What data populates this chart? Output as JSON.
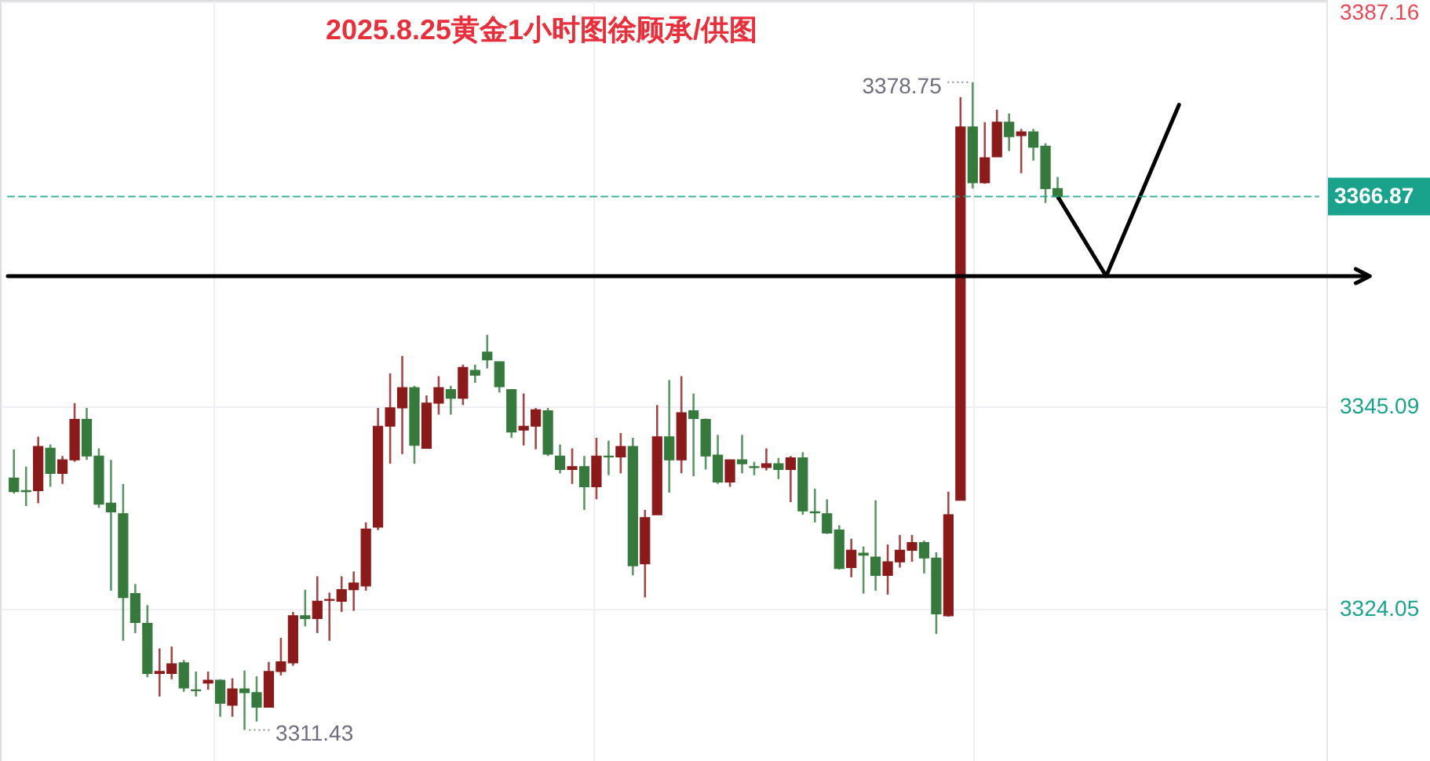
{
  "chart_data": {
    "type": "candlestick",
    "title": "2025.8.25黄金1小时图徐顾承/供图",
    "categories": [
      null,
      null,
      null,
      null,
      null,
      null,
      null,
      null,
      null,
      null,
      null,
      null,
      null,
      null,
      null,
      null,
      null,
      null,
      null,
      null,
      null,
      null,
      null,
      null,
      null,
      null,
      null,
      null,
      null,
      null,
      null,
      null,
      null,
      null,
      null,
      null,
      null,
      null,
      null,
      null,
      null,
      null,
      null,
      null,
      null,
      null,
      null,
      null,
      null,
      null,
      null,
      null,
      null,
      null,
      null,
      null,
      null,
      null,
      null,
      null,
      null,
      null,
      null,
      null,
      null,
      null,
      null,
      null,
      null,
      null,
      null,
      null,
      null,
      null,
      null,
      null,
      null,
      null,
      null,
      null,
      null,
      null,
      null,
      null,
      null,
      null,
      null,
      null,
      null,
      null,
      null,
      null,
      null,
      null,
      null,
      null,
      null,
      null,
      null,
      null,
      null,
      null,
      null,
      null,
      null,
      null,
      null,
      null
    ],
    "ohlc": [
      [
        3337.6,
        3340.6,
        3336.0,
        3336.2
      ],
      [
        3336.3,
        3338.8,
        3334.7,
        3336.2
      ],
      [
        3336.3,
        3341.9,
        3335.0,
        3340.9
      ],
      [
        3340.7,
        3341.1,
        3336.7,
        3338.1
      ],
      [
        3338.1,
        3339.9,
        3337.0,
        3339.5
      ],
      [
        3339.5,
        3345.4,
        3339.3,
        3343.7
      ],
      [
        3343.7,
        3344.9,
        3339.5,
        3339.9
      ],
      [
        3339.9,
        3340.7,
        3334.5,
        3334.9
      ],
      [
        3335.0,
        3339.5,
        3325.9,
        3334.1
      ],
      [
        3333.9,
        3337.0,
        3320.7,
        3325.2
      ],
      [
        3325.6,
        3326.6,
        3321.5,
        3322.6
      ],
      [
        3322.5,
        3324.4,
        3316.9,
        3317.3
      ],
      [
        3317.3,
        3319.9,
        3314.9,
        3317.5
      ],
      [
        3317.3,
        3320.1,
        3316.7,
        3318.3
      ],
      [
        3318.4,
        3318.7,
        3315.4,
        3315.8
      ],
      [
        3315.6,
        3317.5,
        3314.9,
        3315.5
      ],
      [
        3316.3,
        3317.5,
        3315.6,
        3316.6
      ],
      [
        3316.6,
        3316.7,
        3312.8,
        3314.2
      ],
      [
        3314.0,
        3316.8,
        3312.8,
        3315.7
      ],
      [
        3315.7,
        3317.6,
        3311.43,
        3315.3
      ],
      [
        3315.3,
        3317.0,
        3312.3,
        3313.8
      ],
      [
        3313.8,
        3318.5,
        3313.8,
        3317.5
      ],
      [
        3317.5,
        3321.0,
        3317.1,
        3318.5
      ],
      [
        3318.4,
        3323.7,
        3318.1,
        3323.3
      ],
      [
        3323.3,
        3326.0,
        3322.2,
        3323.0
      ],
      [
        3323.0,
        3327.4,
        3321.5,
        3324.8
      ],
      [
        3324.9,
        3325.7,
        3320.7,
        3325.0
      ],
      [
        3324.8,
        3327.4,
        3323.7,
        3326.0
      ],
      [
        3326.0,
        3327.9,
        3323.8,
        3326.7
      ],
      [
        3326.4,
        3333.0,
        3325.9,
        3332.3
      ],
      [
        3332.5,
        3344.9,
        3332.2,
        3343.0
      ],
      [
        3343.0,
        3348.5,
        3339.1,
        3344.9
      ],
      [
        3344.9,
        3350.3,
        3340.1,
        3347.0
      ],
      [
        3347.0,
        3347.2,
        3339.1,
        3341.0
      ],
      [
        3340.7,
        3346.2,
        3340.7,
        3345.4
      ],
      [
        3345.4,
        3348.2,
        3344.2,
        3347.0
      ],
      [
        3346.8,
        3347.2,
        3344.2,
        3345.9
      ],
      [
        3345.9,
        3349.4,
        3345.2,
        3349.1
      ],
      [
        3348.8,
        3349.4,
        3347.5,
        3348.3
      ],
      [
        3350.7,
        3352.5,
        3349.0,
        3349.9
      ],
      [
        3349.7,
        3349.7,
        3346.5,
        3347.1
      ],
      [
        3346.8,
        3346.8,
        3341.8,
        3342.4
      ],
      [
        3342.6,
        3346.4,
        3341.0,
        3343.0
      ],
      [
        3343.0,
        3344.9,
        3340.6,
        3344.7
      ],
      [
        3344.6,
        3344.9,
        3339.9,
        3340.1
      ],
      [
        3339.9,
        3341.1,
        3338.1,
        3338.5
      ],
      [
        3338.5,
        3340.7,
        3337.0,
        3338.8
      ],
      [
        3338.8,
        3339.9,
        3334.3,
        3336.7
      ],
      [
        3336.7,
        3341.8,
        3335.4,
        3339.9
      ],
      [
        3339.9,
        3341.5,
        3337.9,
        3339.8
      ],
      [
        3339.8,
        3342.3,
        3338.1,
        3340.9
      ],
      [
        3340.9,
        3341.8,
        3327.5,
        3328.5
      ],
      [
        3328.7,
        3334.3,
        3325.2,
        3333.5
      ],
      [
        3333.8,
        3345.2,
        3333.8,
        3341.9
      ],
      [
        3341.9,
        3347.8,
        3336.1,
        3339.5
      ],
      [
        3339.5,
        3348.2,
        3338.1,
        3344.4
      ],
      [
        3344.6,
        3346.4,
        3337.8,
        3343.8
      ],
      [
        3343.7,
        3343.8,
        3338.5,
        3339.9
      ],
      [
        3340.0,
        3342.1,
        3337.0,
        3337.2
      ],
      [
        3337.2,
        3339.5,
        3336.7,
        3339.5
      ],
      [
        3339.5,
        3342.1,
        3338.1,
        3339.1
      ],
      [
        3338.8,
        3339.3,
        3337.9,
        3338.7
      ],
      [
        3338.7,
        3340.7,
        3338.4,
        3339.1
      ],
      [
        3339.1,
        3339.7,
        3337.5,
        3338.5
      ],
      [
        3338.5,
        3339.9,
        3335.1,
        3339.7
      ],
      [
        3339.7,
        3340.3,
        3333.8,
        3334.2
      ],
      [
        3334.1,
        3336.5,
        3333.0,
        3334.0
      ],
      [
        3333.9,
        3335.4,
        3331.8,
        3331.9
      ],
      [
        3332.2,
        3332.7,
        3328.1,
        3328.2
      ],
      [
        3328.3,
        3331.3,
        3327.3,
        3330.1
      ],
      [
        3329.8,
        3330.5,
        3325.6,
        3329.6
      ],
      [
        3329.4,
        3335.3,
        3325.9,
        3327.5
      ],
      [
        3327.5,
        3330.7,
        3325.5,
        3328.9
      ],
      [
        3328.9,
        3331.7,
        3328.3,
        3330.1
      ],
      [
        3330.1,
        3331.7,
        3328.9,
        3330.9
      ],
      [
        3330.9,
        3331.1,
        3327.7,
        3329.3
      ],
      [
        3329.3,
        3329.9,
        3321.4,
        3323.5
      ],
      [
        3323.3,
        3336.2,
        3323.2,
        3333.8
      ],
      [
        3335.3,
        3377.2,
        3335.3,
        3374.1
      ],
      [
        3374.1,
        3378.75,
        3367.7,
        3368.3
      ],
      [
        3368.3,
        3374.6,
        3368.2,
        3370.9
      ],
      [
        3371.0,
        3375.9,
        3371.0,
        3374.6
      ],
      [
        3374.6,
        3375.5,
        3371.6,
        3373.1
      ],
      [
        3373.2,
        3373.9,
        3369.3,
        3373.6
      ],
      [
        3373.6,
        3373.9,
        3370.6,
        3372.0
      ],
      [
        3372.1,
        3372.4,
        3366.2,
        3367.7
      ],
      [
        3367.7,
        3368.9,
        3366.5,
        3366.87
      ],
      null,
      null,
      null,
      null,
      null,
      null,
      null,
      null,
      null,
      null,
      null,
      null,
      null,
      null,
      null,
      null,
      null,
      null,
      null,
      null,
      null
    ],
    "colors": [
      "#357a3c",
      "#357a3c",
      "#8b1a1a",
      "#357a3c",
      "#8b1a1a",
      "#8b1a1a",
      "#357a3c",
      "#357a3c",
      "#357a3c",
      "#357a3c",
      "#357a3c",
      "#357a3c",
      "#8b1a1a",
      "#8b1a1a",
      "#357a3c",
      "#357a3c",
      "#8b1a1a",
      "#357a3c",
      "#8b1a1a",
      "#357a3c",
      "#357a3c",
      "#8b1a1a",
      "#8b1a1a",
      "#8b1a1a",
      "#357a3c",
      "#8b1a1a",
      "#8b1a1a",
      "#8b1a1a",
      "#8b1a1a",
      "#8b1a1a",
      "#8b1a1a",
      "#8b1a1a",
      "#8b1a1a",
      "#357a3c",
      "#8b1a1a",
      "#8b1a1a",
      "#357a3c",
      "#8b1a1a",
      "#357a3c",
      "#357a3c",
      "#357a3c",
      "#357a3c",
      "#8b1a1a",
      "#8b1a1a",
      "#357a3c",
      "#357a3c",
      "#8b1a1a",
      "#357a3c",
      "#8b1a1a",
      "#357a3c",
      "#8b1a1a",
      "#357a3c",
      "#8b1a1a",
      "#8b1a1a",
      "#357a3c",
      "#8b1a1a",
      "#357a3c",
      "#357a3c",
      "#357a3c",
      "#8b1a1a",
      "#357a3c",
      "#357a3c",
      "#8b1a1a",
      "#357a3c",
      "#8b1a1a",
      "#357a3c",
      "#357a3c",
      "#357a3c",
      "#357a3c",
      "#8b1a1a",
      "#357a3c",
      "#357a3c",
      "#8b1a1a",
      "#8b1a1a",
      "#8b1a1a",
      "#357a3c",
      "#357a3c",
      "#8b1a1a",
      "#8b1a1a",
      "#357a3c",
      "#8b1a1a",
      "#8b1a1a",
      "#357a3c",
      "#8b1a1a",
      "#357a3c",
      "#357a3c",
      "#357a3c",
      null,
      null,
      null,
      null,
      null,
      null,
      null,
      null,
      null,
      null,
      null,
      null,
      null,
      null,
      null,
      null,
      null,
      null,
      null,
      null,
      null
    ],
    "series": [
      {
        "type": "line",
        "color": "#000000",
        "values": [
          null,
          null,
          null,
          null,
          null,
          null,
          null,
          null,
          null,
          null,
          null,
          null,
          null,
          null,
          null,
          null,
          null,
          null,
          null,
          null,
          null,
          null,
          null,
          null,
          null,
          null,
          null,
          null,
          null,
          null,
          null,
          null,
          null,
          null,
          null,
          null,
          null,
          null,
          null,
          null,
          null,
          null,
          null,
          null,
          null,
          null,
          null,
          null,
          null,
          null,
          null,
          null,
          null,
          null,
          null,
          null,
          null,
          null,
          null,
          null,
          null,
          null,
          null,
          null,
          null,
          null,
          null,
          null,
          null,
          null,
          null,
          null,
          null,
          null,
          null,
          null,
          null,
          null,
          null,
          null,
          null,
          null,
          null,
          null,
          null,
          null,
          3366.9,
          null,
          null,
          null,
          3358.6,
          null,
          null,
          null,
          null,
          null,
          3376.4,
          null,
          null,
          null,
          null,
          null,
          null,
          null,
          null,
          null,
          null,
          null
        ]
      }
    ],
    "ylim": [
      3308.2,
      3387.3
    ],
    "yticks": [
      3324.05,
      3345.09,
      3387.16
    ],
    "grid": true,
    "tick_labels": "y",
    "ref_lines": [
      {
        "axis": "y",
        "value": 3366.87,
        "label": "3366.87",
        "color": "#1aa38c",
        "line_style": "dashed"
      },
      {
        "axis": "y",
        "value": 3358.6,
        "color": "#000000",
        "line_style": "solid"
      }
    ],
    "annotations": [
      "3378.75",
      "3311.43"
    ]
  }
}
